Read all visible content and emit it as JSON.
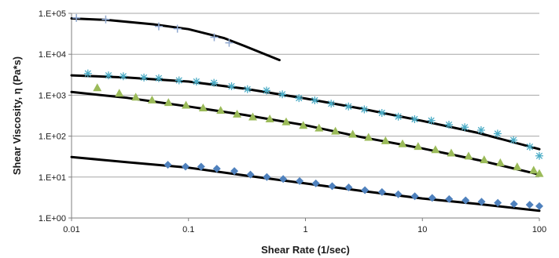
{
  "chart_data": {
    "type": "scatter",
    "xlabel": "Shear Rate (1/sec)",
    "ylabel": "Shear Viscosity, η (Pa*s)",
    "x_scale": "log",
    "y_scale": "log",
    "xlim": [
      0.01,
      100
    ],
    "ylim": [
      1,
      100000
    ],
    "x_ticks": [
      "0.01",
      "0.1",
      "1",
      "10",
      "100"
    ],
    "y_ticks": [
      "1.E+00",
      "1.E+01",
      "1.E+02",
      "1.E+03",
      "1.E+04",
      "1.E+05"
    ],
    "grid": {
      "horizontal": true,
      "vertical": false
    },
    "series": [
      {
        "marker": "plus",
        "color": "#8FA8D0",
        "points": [
          [
            0.011,
            77000
          ],
          [
            0.0196,
            71000
          ],
          [
            0.0557,
            48000
          ],
          [
            0.0804,
            42000
          ],
          [
            0.166,
            26000
          ],
          [
            0.2227,
            19000
          ]
        ],
        "fit": [
          [
            0.01,
            75000
          ],
          [
            0.02,
            69000
          ],
          [
            0.05,
            54000
          ],
          [
            0.1,
            41000
          ],
          [
            0.2,
            25000
          ],
          [
            0.3,
            16000
          ],
          [
            0.6,
            7200
          ]
        ]
      },
      {
        "marker": "asterisk",
        "color": "#4BACC6",
        "points": [
          [
            0.0138,
            3400
          ],
          [
            0.0207,
            3050
          ],
          [
            0.0277,
            2900
          ],
          [
            0.0416,
            2700
          ],
          [
            0.0557,
            2600
          ],
          [
            0.083,
            2300
          ],
          [
            0.1169,
            2150
          ],
          [
            0.1652,
            2000
          ],
          [
            0.2335,
            1650
          ],
          [
            0.3193,
            1400
          ],
          [
            0.4648,
            1300
          ],
          [
            0.6346,
            1050
          ],
          [
            0.8803,
            850
          ],
          [
            1.2016,
            750
          ],
          [
            1.659,
            620
          ],
          [
            2.333,
            530
          ],
          [
            3.1845,
            450
          ],
          [
            4.5075,
            370
          ],
          [
            6.221,
            300
          ],
          [
            8.5858,
            260
          ],
          [
            11.9138,
            240
          ],
          [
            16.8631,
            190
          ],
          [
            23.0189,
            165
          ],
          [
            31.7698,
            140
          ],
          [
            43.9703,
            115
          ],
          [
            60.1012,
            80
          ],
          [
            82.9493,
            55
          ],
          [
            100,
            33
          ]
        ],
        "fit": [
          [
            0.01,
            3050
          ],
          [
            0.03,
            2700
          ],
          [
            0.1,
            2150
          ],
          [
            0.3,
            1450
          ],
          [
            1,
            830
          ],
          [
            3,
            470
          ],
          [
            10,
            235
          ],
          [
            30,
            120
          ],
          [
            100,
            48
          ]
        ]
      },
      {
        "marker": "triangle",
        "color": "#9BBB59",
        "points": [
          [
            0.0166,
            1500
          ],
          [
            0.0256,
            1100
          ],
          [
            0.0354,
            880
          ],
          [
            0.0488,
            750
          ],
          [
            0.0674,
            650
          ],
          [
            0.0952,
            560
          ],
          [
            0.1334,
            480
          ],
          [
            0.1884,
            420
          ],
          [
            0.2603,
            340
          ],
          [
            0.3545,
            290
          ],
          [
            0.4955,
            260
          ],
          [
            0.6843,
            220
          ],
          [
            0.9581,
            180
          ],
          [
            1.3068,
            155
          ],
          [
            1.8044,
            130
          ],
          [
            2.5373,
            110
          ],
          [
            3.4636,
            92
          ],
          [
            4.8386,
            76
          ],
          [
            6.764,
            64
          ],
          [
            9.1941,
            55
          ],
          [
            12.9329,
            46
          ],
          [
            17.6536,
            38
          ],
          [
            24.8271,
            32
          ],
          [
            33.7471,
            26
          ],
          [
            46.3646,
            22
          ],
          [
            64.6567,
            17.5
          ],
          [
            89.4166,
            14.5
          ],
          [
            100,
            12
          ]
        ],
        "fit": [
          [
            0.01,
            1200
          ],
          [
            0.03,
            860
          ],
          [
            0.1,
            530
          ],
          [
            0.3,
            330
          ],
          [
            1,
            185
          ],
          [
            3,
            95
          ],
          [
            10,
            50
          ],
          [
            30,
            26
          ],
          [
            100,
            11.5
          ]
        ]
      },
      {
        "marker": "diamond",
        "color": "#4F81BD",
        "points": [
          [
            0.0666,
            20
          ],
          [
            0.0943,
            18
          ],
          [
            0.1283,
            18
          ],
          [
            0.1747,
            16
          ],
          [
            0.2467,
            14
          ],
          [
            0.3386,
            11.5
          ],
          [
            0.4674,
            10
          ],
          [
            0.6451,
            9
          ],
          [
            0.8917,
            8
          ],
          [
            1.2269,
            7
          ],
          [
            1.6927,
            6
          ],
          [
            2.3425,
            5.6
          ],
          [
            3.2249,
            4.8
          ],
          [
            4.5121,
            4.3
          ],
          [
            6.2158,
            3.8
          ],
          [
            8.6114,
            3.4
          ],
          [
            12.1289,
            3.1
          ],
          [
            16.9326,
            2.9
          ],
          [
            23.4291,
            2.7
          ],
          [
            32.0625,
            2.5
          ],
          [
            44.1379,
            2.35
          ],
          [
            60.6874,
            2.2
          ],
          [
            82.6767,
            2.1
          ],
          [
            100,
            1.95
          ]
        ],
        "fit": [
          [
            0.01,
            31
          ],
          [
            0.03,
            23
          ],
          [
            0.1,
            17
          ],
          [
            0.3,
            11
          ],
          [
            1,
            7
          ],
          [
            3,
            4.6
          ],
          [
            10,
            3
          ],
          [
            30,
            2.2
          ],
          [
            100,
            1.5
          ]
        ]
      }
    ]
  }
}
